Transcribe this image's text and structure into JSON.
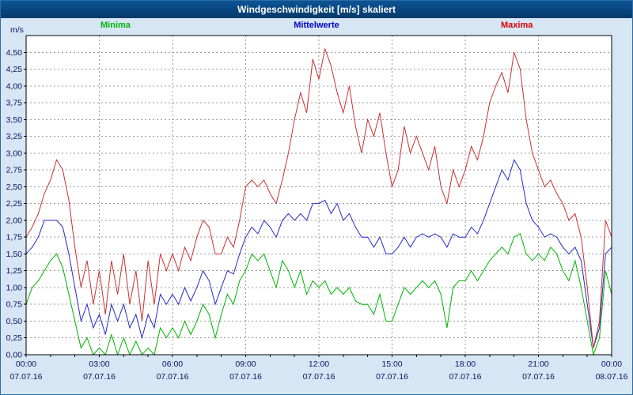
{
  "window": {
    "title": "Windgeschwindigkeit [m/s] skaliert"
  },
  "legend": [
    {
      "label": "Minima",
      "color": "#00b400"
    },
    {
      "label": "Mittelwerte",
      "color": "#0000cc"
    },
    {
      "label": "Maxima",
      "color": "#dd0000"
    }
  ],
  "chart_data": {
    "type": "line",
    "title": "Windgeschwindigkeit [m/s] skaliert",
    "xlabel": "",
    "ylabel": "m/s",
    "ylim": [
      0,
      4.75
    ],
    "ytick_step": 0.25,
    "ytick_labels": [
      "0,00",
      "0,25",
      "0,50",
      "0,75",
      "1,00",
      "1,25",
      "1,50",
      "1,75",
      "2,00",
      "2,25",
      "2,50",
      "2,75",
      "3,00",
      "3,25",
      "3,50",
      "3,75",
      "4,00",
      "4,25",
      "4,50"
    ],
    "grid": "dashed",
    "legend_position": "top",
    "x_interval_minutes": 15,
    "xticks": [
      {
        "hour": 0,
        "time": "00:00",
        "date": "07.07.16"
      },
      {
        "hour": 3,
        "time": "03:00",
        "date": "07.07.16"
      },
      {
        "hour": 6,
        "time": "06:00",
        "date": "07.07.16"
      },
      {
        "hour": 9,
        "time": "09:00",
        "date": "07.07.16"
      },
      {
        "hour": 12,
        "time": "12:00",
        "date": "07.07.16"
      },
      {
        "hour": 15,
        "time": "15:00",
        "date": "07.07.16"
      },
      {
        "hour": 18,
        "time": "18:00",
        "date": "07.07.16"
      },
      {
        "hour": 21,
        "time": "21:00",
        "date": "07.07.16"
      },
      {
        "hour": 24,
        "time": "00:00",
        "date": "08.07.16"
      }
    ],
    "series": [
      {
        "name": "Minima",
        "color": "#00b400",
        "values": [
          0.75,
          1.0,
          1.1,
          1.25,
          1.4,
          1.5,
          1.3,
          0.9,
          0.5,
          0.1,
          0.25,
          0.0,
          0.1,
          0.0,
          0.3,
          0.0,
          0.25,
          0.0,
          0.2,
          0.0,
          0.1,
          0.0,
          0.4,
          0.25,
          0.4,
          0.25,
          0.5,
          0.3,
          0.5,
          0.75,
          0.6,
          0.25,
          0.6,
          0.9,
          0.75,
          1.1,
          1.25,
          1.5,
          1.4,
          1.5,
          1.25,
          1.0,
          1.4,
          1.25,
          1.0,
          1.25,
          0.9,
          1.1,
          1.0,
          1.1,
          0.9,
          1.0,
          0.9,
          1.0,
          0.8,
          0.75,
          0.75,
          0.6,
          0.9,
          0.5,
          0.5,
          0.75,
          1.0,
          0.9,
          1.0,
          1.1,
          1.0,
          1.1,
          0.9,
          0.4,
          1.0,
          1.1,
          1.1,
          1.25,
          1.1,
          1.25,
          1.4,
          1.5,
          1.6,
          1.5,
          1.75,
          1.8,
          1.5,
          1.4,
          1.5,
          1.4,
          1.6,
          1.5,
          1.25,
          1.1,
          1.4,
          1.0,
          0.5,
          0.0,
          0.25,
          1.25,
          0.9
        ]
      },
      {
        "name": "Mittelwerte",
        "color": "#2828c8",
        "values": [
          1.5,
          1.6,
          1.75,
          2.0,
          2.0,
          2.0,
          1.9,
          1.5,
          1.0,
          0.5,
          0.75,
          0.4,
          0.6,
          0.3,
          0.75,
          0.5,
          0.75,
          0.4,
          0.6,
          0.25,
          0.6,
          0.4,
          0.9,
          0.75,
          0.9,
          0.75,
          1.0,
          0.8,
          1.0,
          1.25,
          1.1,
          0.75,
          1.0,
          1.25,
          1.2,
          1.5,
          1.75,
          1.9,
          1.8,
          2.0,
          1.9,
          1.75,
          2.0,
          2.1,
          2.0,
          2.1,
          2.0,
          2.25,
          2.25,
          2.3,
          2.1,
          2.25,
          2.0,
          2.1,
          1.9,
          1.75,
          1.75,
          1.6,
          1.75,
          1.5,
          1.5,
          1.6,
          1.75,
          1.6,
          1.75,
          1.8,
          1.75,
          1.8,
          1.75,
          1.6,
          1.8,
          1.75,
          1.75,
          1.9,
          1.8,
          2.0,
          2.25,
          2.5,
          2.75,
          2.6,
          2.9,
          2.75,
          2.25,
          2.0,
          1.9,
          1.75,
          1.8,
          1.75,
          1.6,
          1.5,
          1.6,
          1.4,
          0.75,
          0.1,
          0.4,
          1.5,
          1.6
        ]
      },
      {
        "name": "Maxima",
        "color": "#c83232",
        "values": [
          1.75,
          1.9,
          2.1,
          2.4,
          2.6,
          2.9,
          2.75,
          2.3,
          1.6,
          1.0,
          1.4,
          0.75,
          1.25,
          0.6,
          1.4,
          0.9,
          1.5,
          0.75,
          1.25,
          0.5,
          1.4,
          0.75,
          1.5,
          1.25,
          1.5,
          1.25,
          1.6,
          1.4,
          1.75,
          2.0,
          1.9,
          1.5,
          1.5,
          1.75,
          1.6,
          2.0,
          2.5,
          2.6,
          2.5,
          2.6,
          2.4,
          2.25,
          2.6,
          3.0,
          3.5,
          3.9,
          3.6,
          4.4,
          4.1,
          4.55,
          4.3,
          3.9,
          3.6,
          4.0,
          3.4,
          3.0,
          3.5,
          3.25,
          3.6,
          3.0,
          2.5,
          2.75,
          3.4,
          3.0,
          3.25,
          3.0,
          2.75,
          3.1,
          2.5,
          2.25,
          2.75,
          2.5,
          2.75,
          3.1,
          2.9,
          3.25,
          3.75,
          4.0,
          4.2,
          3.9,
          4.5,
          4.25,
          3.5,
          3.0,
          2.75,
          2.5,
          2.6,
          2.4,
          2.25,
          2.0,
          2.1,
          1.75,
          1.0,
          0.1,
          0.5,
          2.0,
          1.75
        ]
      }
    ]
  }
}
